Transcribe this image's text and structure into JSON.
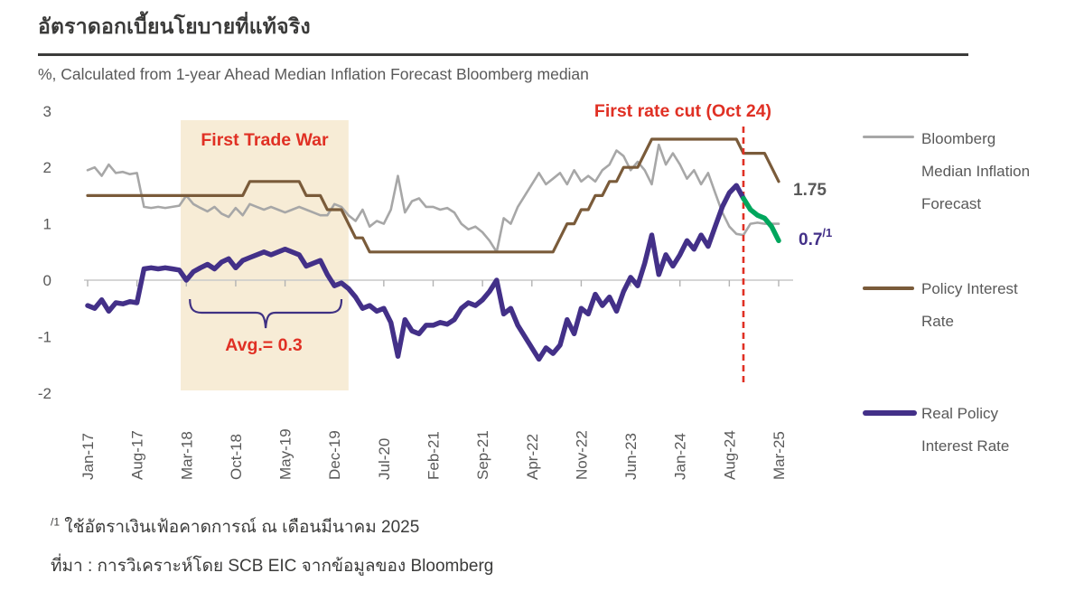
{
  "page": {
    "title": "อัตราดอกเบี้ยนโยบายที่แท้จริง",
    "subtitle": "%, Calculated from 1-year Ahead Median Inflation Forecast Bloomberg median"
  },
  "annotations": {
    "trade_war": "First Trade War",
    "rate_cut": "First rate cut (Oct 24)",
    "avg": "Avg.= 0.3",
    "end_label_policy": "1.75",
    "end_label_real": "0.7",
    "end_label_real_sup": "/1"
  },
  "legend": {
    "items": [
      {
        "label": "Bloomberg Median Inflation Forecast",
        "lines": [
          "Bloomberg",
          "Median Inflation",
          "Forecast"
        ],
        "color": "#a7a7a7"
      },
      {
        "label": "Policy Interest Rate",
        "lines": [
          "Policy Interest",
          "Rate"
        ],
        "color": "#7a5b3a"
      },
      {
        "label": "Real Policy Interest Rate",
        "lines": [
          "Real Policy",
          "Interest Rate"
        ],
        "color": "#433088"
      }
    ]
  },
  "footnotes": {
    "note1_sup": "/1",
    "note1": " ใช้อัตราเงินเฟ้อคาดการณ์ ณ เดือนมีนาคม 2025",
    "source": "ที่มา : การวิเคราะห์โดย SCB EIC จากข้อมูลของ Bloomberg"
  },
  "colors": {
    "gray_series": "#a7a7a7",
    "brown_series": "#7a5b3a",
    "purple_series": "#433088",
    "green_series": "#00a65d",
    "red_accent": "#e03024",
    "shade": "#f7ecd6",
    "axis_text": "#595959",
    "zero_line": "#c9c9c9",
    "brace": "#3f3183"
  },
  "chart_data": {
    "type": "line",
    "title": "อัตราดอกเบี้ยนโยบายที่แท้จริง (Real policy interest rate)",
    "unit_label": "%, Calculated from 1-year Ahead Median Inflation Forecast Bloomberg median",
    "x_start_label": "Jan-17",
    "x_end_label": "Mar-25",
    "n_points": 99,
    "x_tick_labels": [
      "Jan-17",
      "Aug-17",
      "Mar-18",
      "Oct-18",
      "May-19",
      "Dec-19",
      "Jul-20",
      "Feb-21",
      "Sep-21",
      "Apr-22",
      "Nov-22",
      "Jun-23",
      "Jan-24",
      "Aug-24",
      "Mar-25"
    ],
    "x_tick_month_index": [
      0,
      7,
      14,
      21,
      28,
      35,
      42,
      49,
      56,
      63,
      70,
      77,
      84,
      91,
      98
    ],
    "ylim": [
      -2,
      3
    ],
    "y_ticks": [
      "3",
      "2",
      "1",
      "0",
      "-1",
      "-2"
    ],
    "grid": "zero-line-only",
    "legend_position": "right",
    "series": [
      {
        "key": "bloomberg-median-inflation-forecast",
        "name": "Bloomberg Median Inflation Forecast",
        "color": "#a7a7a7",
        "width": 2.6,
        "start_index": 0,
        "values": [
          1.95,
          2.0,
          1.85,
          2.05,
          1.9,
          1.92,
          1.88,
          1.9,
          1.3,
          1.28,
          1.3,
          1.28,
          1.3,
          1.32,
          1.5,
          1.35,
          1.28,
          1.22,
          1.3,
          1.18,
          1.12,
          1.28,
          1.15,
          1.35,
          1.3,
          1.25,
          1.3,
          1.25,
          1.2,
          1.25,
          1.3,
          1.25,
          1.2,
          1.15,
          1.15,
          1.35,
          1.3,
          1.15,
          1.05,
          1.25,
          0.95,
          1.05,
          1.0,
          1.25,
          1.85,
          1.2,
          1.4,
          1.45,
          1.3,
          1.3,
          1.25,
          1.28,
          1.2,
          1.0,
          0.9,
          0.95,
          0.85,
          0.7,
          0.5,
          1.1,
          1.0,
          1.3,
          1.5,
          1.7,
          1.9,
          1.7,
          1.8,
          1.9,
          1.7,
          1.95,
          1.75,
          1.85,
          1.75,
          1.95,
          2.05,
          2.3,
          2.2,
          1.95,
          2.1,
          1.95,
          1.7,
          2.4,
          2.05,
          2.25,
          2.05,
          1.8,
          1.95,
          1.7,
          1.9,
          1.55,
          1.2,
          0.95,
          0.82,
          0.8,
          1.0,
          1.02,
          1.0,
          1.0,
          1.0
        ]
      },
      {
        "key": "policy-interest-rate",
        "name": "Policy Interest Rate",
        "color": "#7a5b3a",
        "width": 3.2,
        "start_index": 0,
        "values": [
          1.5,
          1.5,
          1.5,
          1.5,
          1.5,
          1.5,
          1.5,
          1.5,
          1.5,
          1.5,
          1.5,
          1.5,
          1.5,
          1.5,
          1.5,
          1.5,
          1.5,
          1.5,
          1.5,
          1.5,
          1.5,
          1.5,
          1.5,
          1.75,
          1.75,
          1.75,
          1.75,
          1.75,
          1.75,
          1.75,
          1.75,
          1.5,
          1.5,
          1.5,
          1.25,
          1.25,
          1.25,
          1.0,
          0.75,
          0.75,
          0.5,
          0.5,
          0.5,
          0.5,
          0.5,
          0.5,
          0.5,
          0.5,
          0.5,
          0.5,
          0.5,
          0.5,
          0.5,
          0.5,
          0.5,
          0.5,
          0.5,
          0.5,
          0.5,
          0.5,
          0.5,
          0.5,
          0.5,
          0.5,
          0.5,
          0.5,
          0.5,
          0.75,
          1.0,
          1.0,
          1.25,
          1.25,
          1.5,
          1.5,
          1.75,
          1.75,
          2.0,
          2.0,
          2.0,
          2.25,
          2.5,
          2.5,
          2.5,
          2.5,
          2.5,
          2.5,
          2.5,
          2.5,
          2.5,
          2.5,
          2.5,
          2.5,
          2.5,
          2.25,
          2.25,
          2.25,
          2.25,
          2.0,
          1.75
        ],
        "end_value_label": "1.75"
      },
      {
        "key": "real-policy-interest-rate",
        "name": "Real Policy Interest Rate",
        "color": "#433088",
        "width": 5.5,
        "start_index": 0,
        "values": [
          -0.45,
          -0.5,
          -0.35,
          -0.55,
          -0.4,
          -0.42,
          -0.38,
          -0.4,
          0.2,
          0.22,
          0.2,
          0.22,
          0.2,
          0.18,
          0.0,
          0.15,
          0.22,
          0.28,
          0.2,
          0.32,
          0.38,
          0.22,
          0.35,
          0.4,
          0.45,
          0.5,
          0.45,
          0.5,
          0.55,
          0.5,
          0.45,
          0.25,
          0.3,
          0.35,
          0.1,
          -0.1,
          -0.05,
          -0.15,
          -0.3,
          -0.5,
          -0.45,
          -0.55,
          -0.5,
          -0.75,
          -1.35,
          -0.7,
          -0.9,
          -0.95,
          -0.8,
          -0.8,
          -0.75,
          -0.78,
          -0.7,
          -0.5,
          -0.4,
          -0.45,
          -0.35,
          -0.2,
          0.0,
          -0.6,
          -0.5,
          -0.8,
          -1.0,
          -1.2,
          -1.4,
          -1.2,
          -1.3,
          -1.15,
          -0.7,
          -0.95,
          -0.5,
          -0.6,
          -0.25,
          -0.45,
          -0.3,
          -0.55,
          -0.2,
          0.05,
          -0.1,
          0.3,
          0.8,
          0.1,
          0.45,
          0.25,
          0.45,
          0.7,
          0.55,
          0.8,
          0.6,
          0.95,
          1.3,
          1.55,
          1.68,
          1.45
        ]
      },
      {
        "key": "real-policy-interest-rate-forecast",
        "name": "Real Policy Interest Rate (after first rate cut, using Mar-2025 inflation forecast)",
        "color": "#00a65d",
        "width": 5.5,
        "start_index": 93,
        "values": [
          1.45,
          1.25,
          1.15,
          1.1,
          0.95,
          0.7
        ],
        "end_value_label": "0.7"
      }
    ],
    "annotations": {
      "shaded_region": {
        "label": "First Trade War",
        "from_month": 13.2,
        "to_month": 37.0
      },
      "rate_cut_line": {
        "label": "First rate cut (Oct 24)",
        "month_index": 93
      },
      "avg_brace": {
        "label": "Avg.= 0.3",
        "from_month": 14.5,
        "to_month": 36.0,
        "value": 0.3
      }
    }
  }
}
